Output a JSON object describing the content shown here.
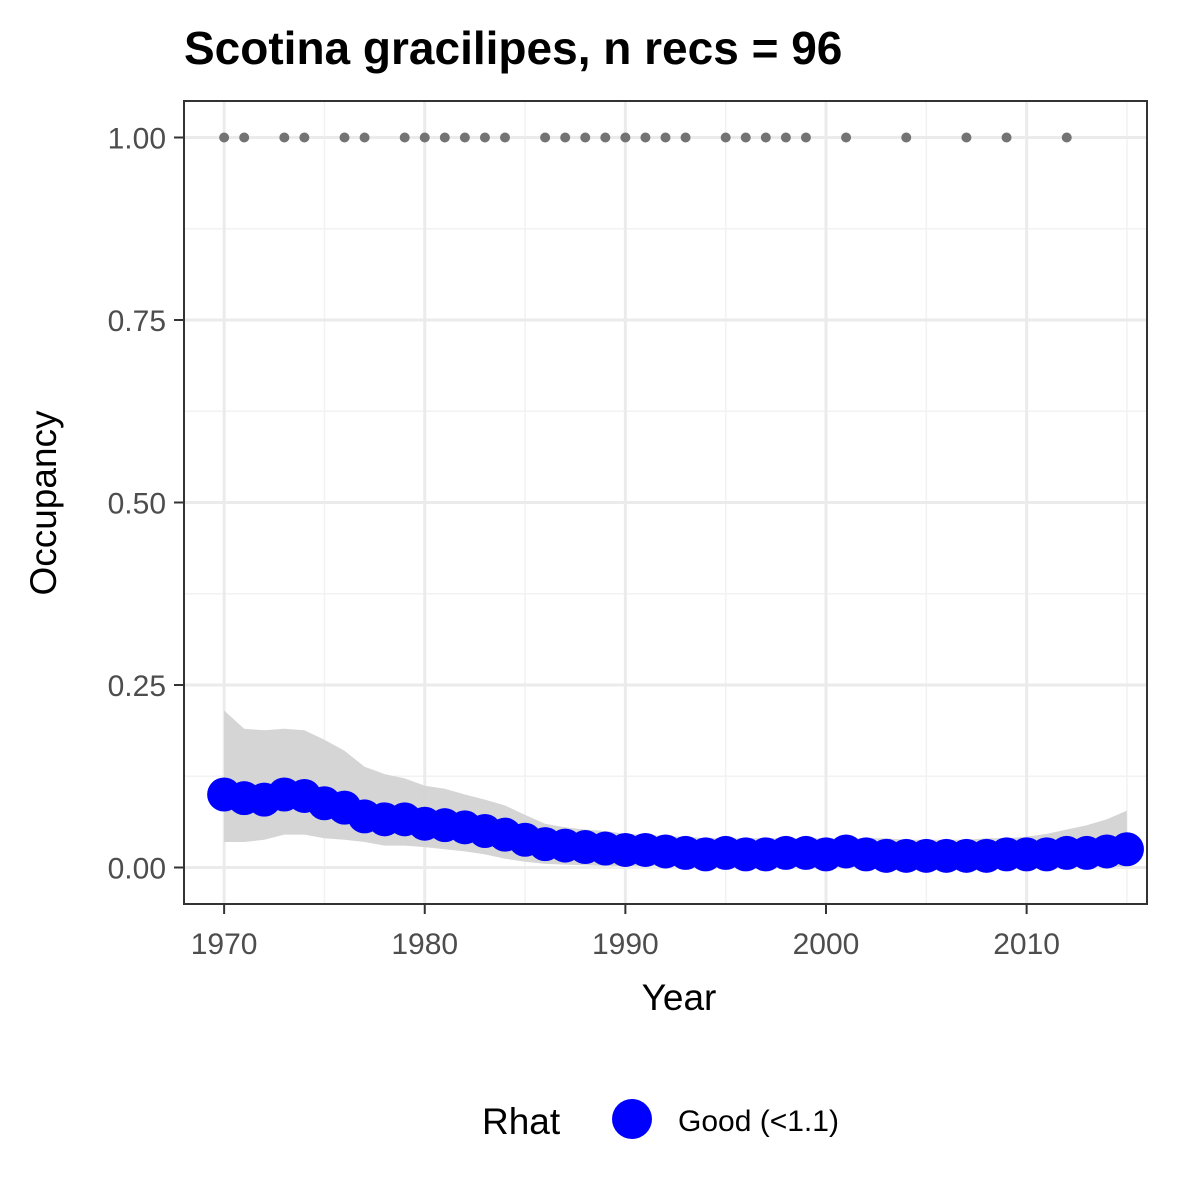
{
  "chart_data": {
    "type": "line",
    "title": "Scotina gracilipes, n recs = 96",
    "xlabel": "Year",
    "ylabel": "Occupancy",
    "xlim": [
      1968,
      2016
    ],
    "ylim": [
      -0.05,
      1.05
    ],
    "x_ticks": [
      1970,
      1980,
      1990,
      2000,
      2010
    ],
    "x_tick_labels": [
      "1970",
      "1980",
      "1990",
      "2000",
      "2010"
    ],
    "y_ticks": [
      0,
      0.25,
      0.5,
      0.75,
      1.0
    ],
    "y_tick_labels": [
      "0.00",
      "0.25",
      "0.50",
      "0.75",
      "1.00"
    ],
    "grid": true,
    "legend": {
      "position": "bottom",
      "title": "Rhat",
      "entries": [
        {
          "label": "Good (<1.1)",
          "color": "#0000ff"
        }
      ]
    },
    "colors": {
      "occupancy": "#0000ff",
      "ribbon": "#d3d3d3",
      "records": "#737373"
    },
    "occupancy_series": {
      "x": [
        1970,
        1971,
        1972,
        1973,
        1974,
        1975,
        1976,
        1977,
        1978,
        1979,
        1980,
        1981,
        1982,
        1983,
        1984,
        1985,
        1986,
        1987,
        1988,
        1989,
        1990,
        1991,
        1992,
        1993,
        1994,
        1995,
        1996,
        1997,
        1998,
        1999,
        2000,
        2001,
        2002,
        2003,
        2004,
        2005,
        2006,
        2007,
        2008,
        2009,
        2010,
        2011,
        2012,
        2013,
        2014,
        2015
      ],
      "y": [
        0.1,
        0.095,
        0.093,
        0.1,
        0.098,
        0.088,
        0.082,
        0.07,
        0.066,
        0.066,
        0.06,
        0.058,
        0.055,
        0.05,
        0.045,
        0.038,
        0.032,
        0.03,
        0.028,
        0.026,
        0.024,
        0.024,
        0.022,
        0.02,
        0.018,
        0.02,
        0.018,
        0.018,
        0.02,
        0.02,
        0.018,
        0.022,
        0.018,
        0.016,
        0.016,
        0.016,
        0.016,
        0.016,
        0.016,
        0.018,
        0.018,
        0.018,
        0.02,
        0.02,
        0.022,
        0.025
      ]
    },
    "credible_interval": {
      "upper": [
        0.215,
        0.19,
        0.188,
        0.19,
        0.188,
        0.175,
        0.16,
        0.138,
        0.128,
        0.122,
        0.112,
        0.108,
        0.1,
        0.093,
        0.085,
        0.072,
        0.06,
        0.055,
        0.052,
        0.05,
        0.046,
        0.045,
        0.043,
        0.042,
        0.04,
        0.04,
        0.04,
        0.04,
        0.04,
        0.04,
        0.04,
        0.04,
        0.04,
        0.04,
        0.038,
        0.038,
        0.038,
        0.038,
        0.04,
        0.04,
        0.042,
        0.046,
        0.052,
        0.058,
        0.066,
        0.078
      ],
      "lower": [
        0.035,
        0.035,
        0.038,
        0.045,
        0.045,
        0.04,
        0.038,
        0.035,
        0.03,
        0.03,
        0.028,
        0.025,
        0.022,
        0.018,
        0.012,
        0.008,
        0.005,
        0.004,
        0.003,
        0.002,
        0.002,
        0.002,
        0.002,
        0.001,
        0.001,
        0.001,
        0.001,
        0.001,
        0.001,
        0.001,
        0.001,
        0.001,
        0.001,
        0.001,
        0.001,
        0.001,
        0.001,
        0.001,
        0.001,
        0.001,
        0.001,
        0.001,
        0.001,
        0.001,
        0.001,
        0.001
      ]
    },
    "record_years": {
      "x": [
        1970,
        1971,
        1973,
        1974,
        1976,
        1977,
        1979,
        1980,
        1981,
        1982,
        1983,
        1984,
        1986,
        1987,
        1988,
        1989,
        1990,
        1991,
        1992,
        1993,
        1995,
        1996,
        1997,
        1998,
        1999,
        2001,
        2004,
        2007,
        2009,
        2012
      ],
      "y": 1.0
    }
  }
}
